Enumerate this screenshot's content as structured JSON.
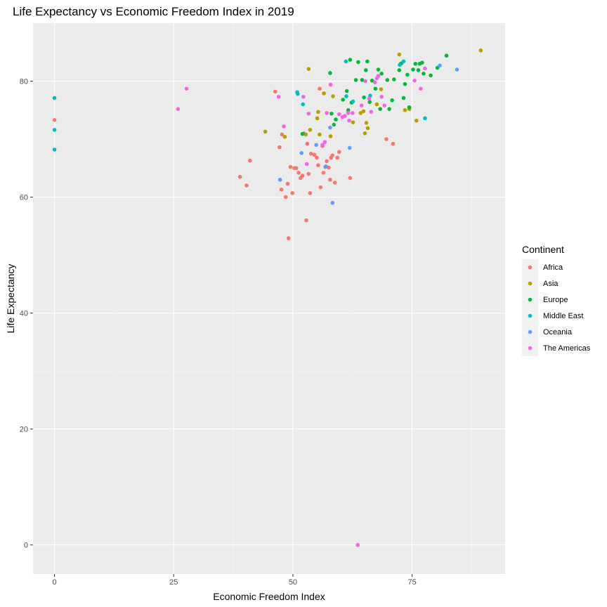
{
  "chart_data": {
    "type": "scatter",
    "title": "Life Expectancy vs Economic Freedom Index in 2019",
    "xlabel": "Economic Freedom Index",
    "ylabel": "Life Expectancy",
    "xlim": [
      -4.5,
      94.5
    ],
    "ylim": [
      -5,
      90
    ],
    "x_ticks": [
      0,
      25,
      50,
      75
    ],
    "y_ticks": [
      0,
      20,
      40,
      60,
      80
    ],
    "grid": true,
    "legend": {
      "title": "Continent",
      "position": "right"
    },
    "series": [
      {
        "name": "Africa",
        "color": "#F8766D",
        "points": [
          [
            0,
            73.3
          ],
          [
            38.9,
            63.5
          ],
          [
            40.3,
            62
          ],
          [
            41,
            66.3
          ],
          [
            46.3,
            78.2
          ],
          [
            47.2,
            68.6
          ],
          [
            47.6,
            61.3
          ],
          [
            47.7,
            70.8
          ],
          [
            48.5,
            60
          ],
          [
            48.9,
            62.3
          ],
          [
            49.1,
            52.9
          ],
          [
            49.5,
            65.2
          ],
          [
            49.9,
            60.7
          ],
          [
            50.3,
            65
          ],
          [
            50.7,
            65
          ],
          [
            51.2,
            64.2
          ],
          [
            51.6,
            63.3
          ],
          [
            52,
            63.7
          ],
          [
            52.3,
            71
          ],
          [
            52.8,
            56
          ],
          [
            53,
            69.2
          ],
          [
            53.3,
            64
          ],
          [
            53.6,
            60.7
          ],
          [
            53.8,
            67.5
          ],
          [
            54.5,
            67.3
          ],
          [
            55,
            66.8
          ],
          [
            55.3,
            65.5
          ],
          [
            55.6,
            78.7
          ],
          [
            55.8,
            61.7
          ],
          [
            56.2,
            68.8
          ],
          [
            56.4,
            64.2
          ],
          [
            56.8,
            65.2
          ],
          [
            57.1,
            66.2
          ],
          [
            57.5,
            65.1
          ],
          [
            57.8,
            63
          ],
          [
            58,
            66.8
          ],
          [
            58.3,
            67.2
          ],
          [
            58.8,
            62.5
          ],
          [
            59.3,
            66.8
          ],
          [
            59.7,
            67.8
          ],
          [
            62,
            63.3
          ],
          [
            69.6,
            70
          ],
          [
            71,
            69.2
          ]
        ]
      },
      {
        "name": "Asia",
        "color": "#B79F00",
        "points": [
          [
            44.2,
            71.3
          ],
          [
            48.3,
            70.4
          ],
          [
            52.7,
            70.8
          ],
          [
            53.3,
            82.1
          ],
          [
            53.6,
            71.6
          ],
          [
            55.1,
            73.6
          ],
          [
            55.3,
            74.7
          ],
          [
            55.6,
            70.8
          ],
          [
            56.5,
            77.9
          ],
          [
            57.9,
            70.5
          ],
          [
            58.4,
            77.4
          ],
          [
            62.6,
            72.9
          ],
          [
            64.2,
            74.5
          ],
          [
            64.8,
            74.8
          ],
          [
            65.1,
            71
          ],
          [
            65.4,
            72.8
          ],
          [
            65.7,
            71.9
          ],
          [
            67.6,
            76
          ],
          [
            68.5,
            78.6
          ],
          [
            72.3,
            84.6
          ],
          [
            72.8,
            83.1
          ],
          [
            73.5,
            75
          ],
          [
            74.4,
            75.2
          ],
          [
            75.9,
            73.2
          ],
          [
            89.4,
            85.3
          ]
        ]
      },
      {
        "name": "Europe",
        "color": "#00BA38",
        "points": [
          [
            52,
            70.9
          ],
          [
            57.8,
            81.4
          ],
          [
            58.1,
            74.4
          ],
          [
            58.6,
            72.5
          ],
          [
            59,
            73.4
          ],
          [
            60.5,
            76.8
          ],
          [
            61.3,
            78.3
          ],
          [
            61.6,
            75
          ],
          [
            62,
            83.7
          ],
          [
            62.3,
            76.3
          ],
          [
            63.2,
            80.2
          ],
          [
            63.7,
            83.3
          ],
          [
            64.5,
            80.2
          ],
          [
            64.9,
            77.2
          ],
          [
            65.3,
            81.9
          ],
          [
            65.6,
            83.4
          ],
          [
            66.1,
            76.4
          ],
          [
            66.6,
            80.1
          ],
          [
            67.3,
            78.7
          ],
          [
            67.9,
            82
          ],
          [
            68.3,
            75.2
          ],
          [
            68.6,
            81.3
          ],
          [
            69.8,
            80.2
          ],
          [
            70.2,
            75.2
          ],
          [
            70.8,
            76.7
          ],
          [
            71.2,
            80.3
          ],
          [
            72.3,
            81.9
          ],
          [
            72.6,
            83
          ],
          [
            73.2,
            77.1
          ],
          [
            73.5,
            79.5
          ],
          [
            74,
            81.1
          ],
          [
            74.4,
            75.5
          ],
          [
            75.2,
            82
          ],
          [
            75.7,
            83
          ],
          [
            76.3,
            81.9
          ],
          [
            76.6,
            83
          ],
          [
            77.1,
            83.2
          ],
          [
            77.4,
            81.3
          ],
          [
            78.9,
            81
          ],
          [
            80.3,
            82.3
          ],
          [
            82.2,
            84.4
          ]
        ]
      },
      {
        "name": "Middle East",
        "color": "#00BFC4",
        "points": [
          [
            0,
            77.1
          ],
          [
            0,
            71.6
          ],
          [
            0,
            68.2
          ],
          [
            50.9,
            78.1
          ],
          [
            51,
            77.8
          ],
          [
            52.1,
            76
          ],
          [
            61.1,
            83.4
          ],
          [
            61.2,
            77.4
          ],
          [
            62.6,
            76.5
          ],
          [
            66.2,
            77.5
          ],
          [
            72.4,
            82.8
          ],
          [
            73.2,
            83.4
          ],
          [
            77.7,
            73.6
          ]
        ]
      },
      {
        "name": "Oceania",
        "color": "#619CFF",
        "points": [
          [
            47.3,
            63
          ],
          [
            51.8,
            67.6
          ],
          [
            54.9,
            69
          ],
          [
            56.9,
            65.3
          ],
          [
            57.8,
            72
          ],
          [
            58.3,
            59
          ],
          [
            61.9,
            68.5
          ],
          [
            80.8,
            82.7
          ],
          [
            84.4,
            82
          ]
        ]
      },
      {
        "name": "The Americas",
        "color": "#F564E3",
        "points": [
          [
            25.9,
            75.2
          ],
          [
            27.7,
            78.7
          ],
          [
            47,
            77.3
          ],
          [
            48.1,
            72.2
          ],
          [
            52.2,
            77.3
          ],
          [
            52.9,
            65.7
          ],
          [
            53.3,
            74.4
          ],
          [
            56.2,
            69
          ],
          [
            56.7,
            69.5
          ],
          [
            57.1,
            74.5
          ],
          [
            57.9,
            79.4
          ],
          [
            59.7,
            74.3
          ],
          [
            60.4,
            73.8
          ],
          [
            60.9,
            74
          ],
          [
            61.6,
            74.5
          ],
          [
            61.8,
            73.2
          ],
          [
            62.5,
            74.5
          ],
          [
            63.6,
            0
          ],
          [
            64.4,
            75.8
          ],
          [
            65.2,
            80
          ],
          [
            66,
            77
          ],
          [
            66.4,
            74.7
          ],
          [
            67.2,
            79.8
          ],
          [
            67.6,
            80.5
          ],
          [
            67.9,
            80.9
          ],
          [
            68.6,
            77.3
          ],
          [
            69.2,
            75.8
          ],
          [
            75.5,
            80.1
          ],
          [
            76.8,
            78.7
          ],
          [
            77.7,
            82.2
          ]
        ]
      }
    ]
  }
}
